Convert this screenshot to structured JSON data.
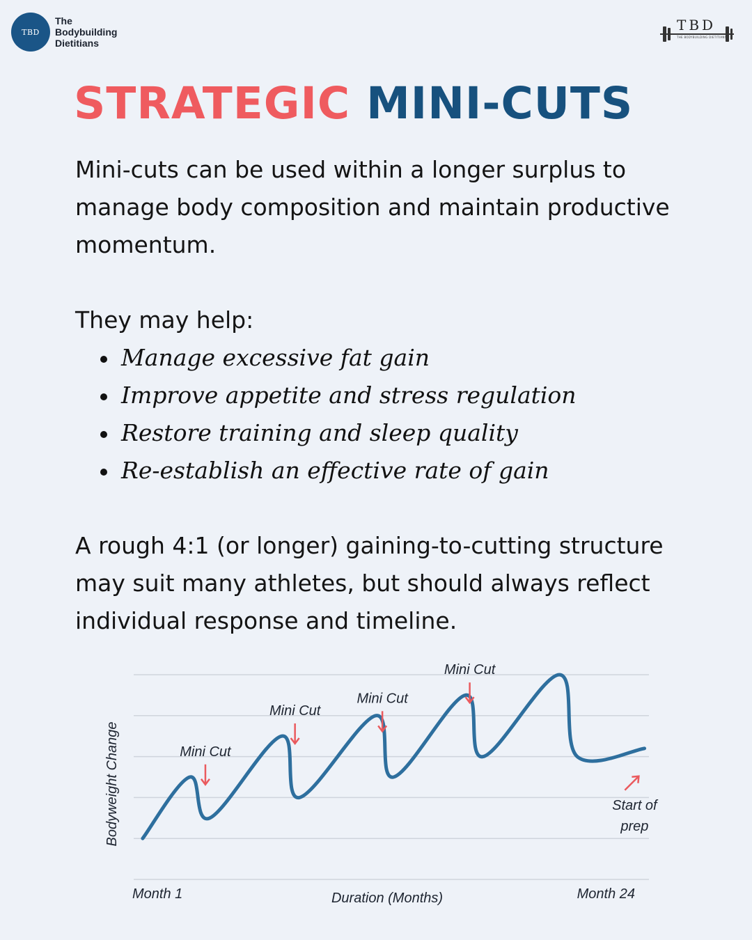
{
  "brand": {
    "badge": "TBD",
    "name": "The\nBodybuilding\nDietitians",
    "logo_letters": "TBD",
    "logo_tagline": "THE BODYBUILDING DIETITIANS"
  },
  "title": {
    "part1": "STRATEGIC",
    "part2": "MINI-CUTS"
  },
  "intro": "Mini-cuts can be used within a longer surplus to manage body composition and maintain productive momentum.",
  "benefits_lead": "They may help:",
  "benefits": [
    "Manage excessive fat gain",
    "Improve appetite and stress regulation",
    "Restore training and sleep quality",
    "Re-establish an effective rate of gain"
  ],
  "closing": "A rough 4:1 (or longer) gaining-to-cutting structure may suit many athletes, but should always reflect individual response and timeline.",
  "colors": {
    "accent_red": "#ef5b5f",
    "accent_blue": "#17517e",
    "line": "#2e6f9e",
    "arrow": "#ea5a5e"
  },
  "chart_data": {
    "type": "line",
    "xlabel": "Duration (Months)",
    "ylabel": "Bodyweight Change",
    "x_tick_labels": [
      "Month 1",
      "Month 24"
    ],
    "xlim": [
      1,
      24
    ],
    "ylim": [
      0,
      5
    ],
    "grid": true,
    "y_ticks": [
      0,
      1,
      2,
      3,
      4,
      5
    ],
    "series": [
      {
        "points": [
          [
            1.4,
            1.0
          ],
          [
            3.5,
            2.5
          ],
          [
            4.4,
            1.5
          ],
          [
            7.6,
            3.5
          ],
          [
            8.4,
            2.0
          ],
          [
            11.8,
            4.0
          ],
          [
            12.6,
            2.5
          ],
          [
            15.8,
            4.5
          ],
          [
            16.6,
            3.0
          ],
          [
            20.0,
            5.0
          ],
          [
            20.8,
            3.0
          ],
          [
            23.8,
            3.2
          ]
        ]
      }
    ],
    "annotations": [
      {
        "text": "Mini Cut",
        "x": 4.2,
        "y": 2.3,
        "arrow": "down"
      },
      {
        "text": "Mini Cut",
        "x": 8.2,
        "y": 3.3,
        "arrow": "down"
      },
      {
        "text": "Mini Cut",
        "x": 12.1,
        "y": 3.6,
        "arrow": "down"
      },
      {
        "text": "Mini Cut",
        "x": 16.0,
        "y": 4.3,
        "arrow": "down"
      },
      {
        "text": "Start of prep",
        "x": 22.8,
        "y": 1.5,
        "arrow": "up-right"
      }
    ]
  }
}
